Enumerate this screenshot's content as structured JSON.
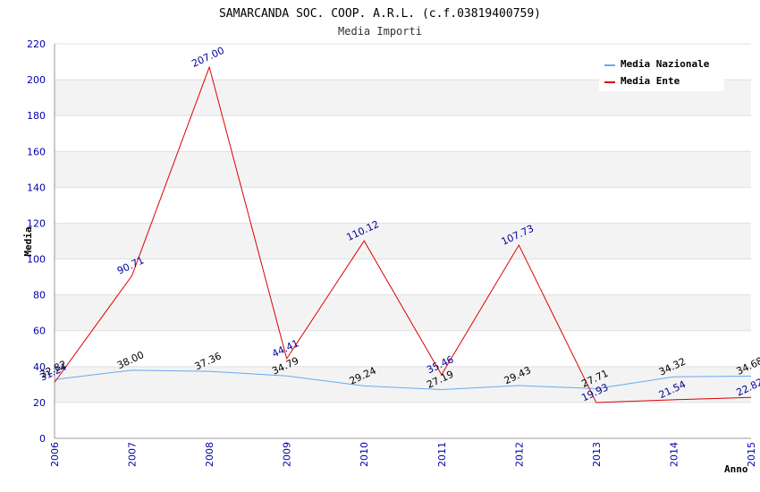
{
  "chart_data": {
    "type": "line",
    "title": "SAMARCANDA SOC. COOP. A.R.L. (c.f.03819400759)",
    "subtitle": "Media Importi",
    "xlabel": "Anno",
    "ylabel": "Media",
    "ylim": [
      0,
      220
    ],
    "y_ticks": [
      "0",
      "20",
      "40",
      "60",
      "80",
      "100",
      "120",
      "140",
      "160",
      "180",
      "200",
      "220"
    ],
    "x": [
      "2006",
      "2007",
      "2008",
      "2009",
      "2010",
      "2011",
      "2012",
      "2013",
      "2014",
      "2015"
    ],
    "grid": true,
    "legend_position": "top-right",
    "series": [
      {
        "name": "Media Nazionale",
        "color": "#66aaee",
        "label_color": "#000000",
        "values": [
          32.82,
          38.0,
          37.36,
          34.79,
          29.24,
          27.19,
          29.43,
          27.71,
          34.32,
          34.68
        ],
        "labels": [
          "32.82",
          "38.00",
          "37.36",
          "34.79",
          "29.24",
          "27.19",
          "29.43",
          "27.71",
          "34.32",
          "34.68"
        ]
      },
      {
        "name": "Media Ente",
        "color": "#dd0000",
        "label_color": "#000099",
        "values": [
          31.24,
          90.71,
          207.0,
          44.41,
          110.12,
          35.46,
          107.73,
          19.93,
          21.54,
          22.82
        ],
        "labels": [
          "31.24",
          "90.71",
          "207.00",
          "44.41",
          "110.12",
          "35.46",
          "107.73",
          "19.93",
          "21.54",
          "22.82"
        ]
      }
    ]
  }
}
